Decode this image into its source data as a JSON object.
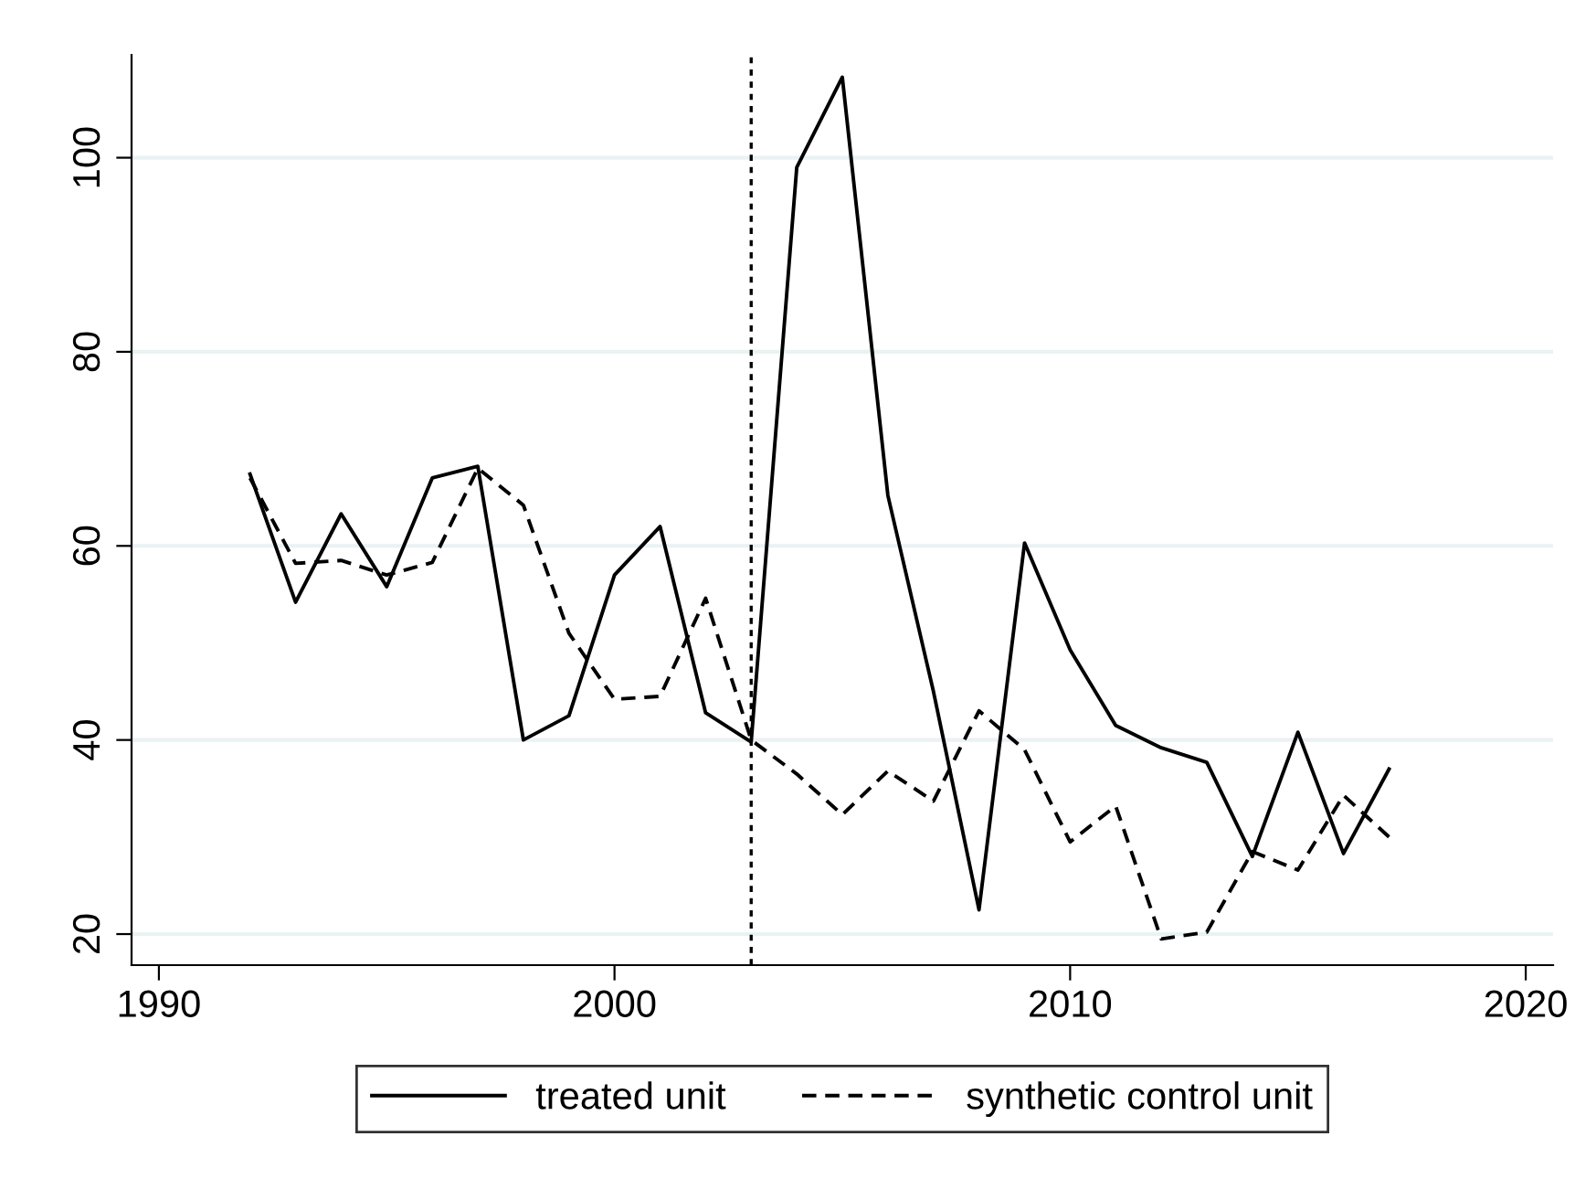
{
  "chart_data": {
    "type": "line",
    "x": [
      1992,
      1993,
      1994,
      1995,
      1996,
      1997,
      1998,
      1999,
      2000,
      2001,
      2002,
      2003,
      2004,
      2005,
      2006,
      2007,
      2008,
      2009,
      2010,
      2011,
      2012,
      2013,
      2014,
      2015,
      2016,
      2017
    ],
    "series": [
      {
        "name": "treated unit",
        "color": "#000000",
        "line_style": "solid",
        "values": [
          67.4,
          54.2,
          63.3,
          55.8,
          67,
          68.2,
          40,
          42.5,
          57,
          62,
          42.8,
          39.8,
          99,
          108.3,
          65.2,
          45,
          22.5,
          60.3,
          49.3,
          41.5,
          39.2,
          37.7,
          28,
          40.8,
          28.3,
          37
        ]
      },
      {
        "name": "synthetic control unit",
        "color": "#000000",
        "line_style": "dashed",
        "values": [
          67,
          58.2,
          58.5,
          57,
          58.3,
          68,
          64.2,
          51,
          44.2,
          44.5,
          54.6,
          40,
          36.5,
          32.3,
          36.8,
          33.7,
          43,
          39,
          29.5,
          33.2,
          19.5,
          20.2,
          28.5,
          26.6,
          34.3,
          30
        ]
      }
    ],
    "xlim": [
      1989.4,
      2020.6
    ],
    "xticks": [
      1990,
      2000,
      2010,
      2020
    ],
    "ylim": [
      16.8,
      110.6
    ],
    "yticks": [
      20,
      40,
      60,
      80,
      100
    ],
    "ref_lines": [
      {
        "axis": "x",
        "value": 2003,
        "color": "#000000",
        "line_style": "dotted"
      }
    ],
    "grid": "y",
    "legend": "bottom",
    "marker": "none"
  }
}
